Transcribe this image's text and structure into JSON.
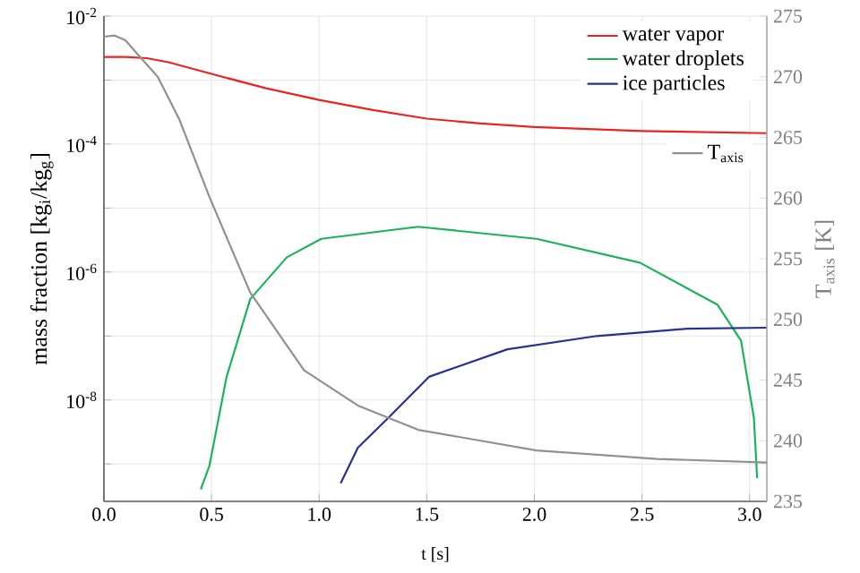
{
  "chart_data": {
    "type": "line",
    "xlabel": "t [s]",
    "ylabel": "mass fraction [kg$_{i}$/kg$_{g}$]",
    "y2label": "T$_{axis}$ [K]",
    "log": "y",
    "grid": true,
    "legend": "top right",
    "marker": "none",
    "line_style": "solid",
    "xlim": [
      0,
      3.08
    ],
    "xticks": [
      {
        "value": 0,
        "label": "0.0"
      },
      {
        "value": 0.5,
        "label": "0.5"
      },
      {
        "value": 1,
        "label": "1.0"
      },
      {
        "value": 1.5,
        "label": "1.5"
      },
      {
        "value": 2,
        "label": "2.0"
      },
      {
        "value": 2.5,
        "label": "2.5"
      },
      {
        "value": 3,
        "label": "3.0"
      }
    ],
    "ylim": [
      2.6e-10,
      0.01
    ],
    "yticks": [
      {
        "value": 0.01,
        "label": "10$^{-2}$"
      },
      {
        "value": 0.001,
        "label": null
      },
      {
        "value": 0.0001,
        "label": "10$^{-4}$"
      },
      {
        "value": 1e-05,
        "label": null
      },
      {
        "value": 1e-06,
        "label": "10$^{-6}$"
      },
      {
        "value": 1e-07,
        "label": null
      },
      {
        "value": 1e-08,
        "label": "10$^{-8}$"
      },
      {
        "value": 1e-09,
        "label": null
      }
    ],
    "y2lim": [
      235,
      275
    ],
    "y2ticks": [
      235,
      240,
      245,
      250,
      255,
      260,
      265,
      270,
      275
    ],
    "series": [
      {
        "name": "water vapor",
        "color": "#e8251f",
        "x": [
          0,
          0.1,
          0.2,
          0.3,
          0.5,
          0.75,
          1.0,
          1.25,
          1.5,
          1.75,
          2.0,
          2.5,
          3.08
        ],
        "values": [
          0.0023,
          0.0023,
          0.0022,
          0.0019,
          0.00125,
          0.00075,
          0.00049,
          0.00034,
          0.00025,
          0.00021,
          0.000185,
          0.00016,
          0.000148
        ]
      },
      {
        "name": "water droplets",
        "color": "#1bb35a",
        "x": [
          0.45,
          0.49,
          0.57,
          0.68,
          0.85,
          1.01,
          1.46,
          2.01,
          2.49,
          2.85,
          2.96,
          3.02,
          3.035
        ],
        "values": [
          4e-10,
          9.3e-10,
          2.3e-08,
          3.8e-07,
          1.7e-06,
          3.3e-06,
          5.1e-06,
          3.3e-06,
          1.4e-06,
          3.1e-07,
          8.5e-08,
          5.2e-09,
          6e-10
        ]
      },
      {
        "name": "ice particles",
        "color": "#27318f",
        "x": [
          1.1,
          1.18,
          1.32,
          1.51,
          1.875,
          2.29,
          2.71,
          3.08
        ],
        "values": [
          5e-10,
          1.8e-09,
          5.2e-09,
          2.3e-08,
          6.2e-08,
          1e-07,
          1.3e-07,
          1.35e-07
        ]
      },
      {
        "name": "T$_{axis}$",
        "color": "#909090",
        "axis": "y2",
        "x": [
          0,
          0.05,
          0.1,
          0.15,
          0.25,
          0.35,
          0.49,
          0.68,
          0.93,
          1.18,
          1.46,
          2.01,
          2.57,
          3.08
        ],
        "values": [
          273.3,
          273.4,
          273.0,
          272.0,
          270.0,
          266.5,
          260.1,
          252.2,
          245.8,
          242.9,
          240.9,
          239.2,
          238.5,
          238.2
        ]
      }
    ]
  }
}
